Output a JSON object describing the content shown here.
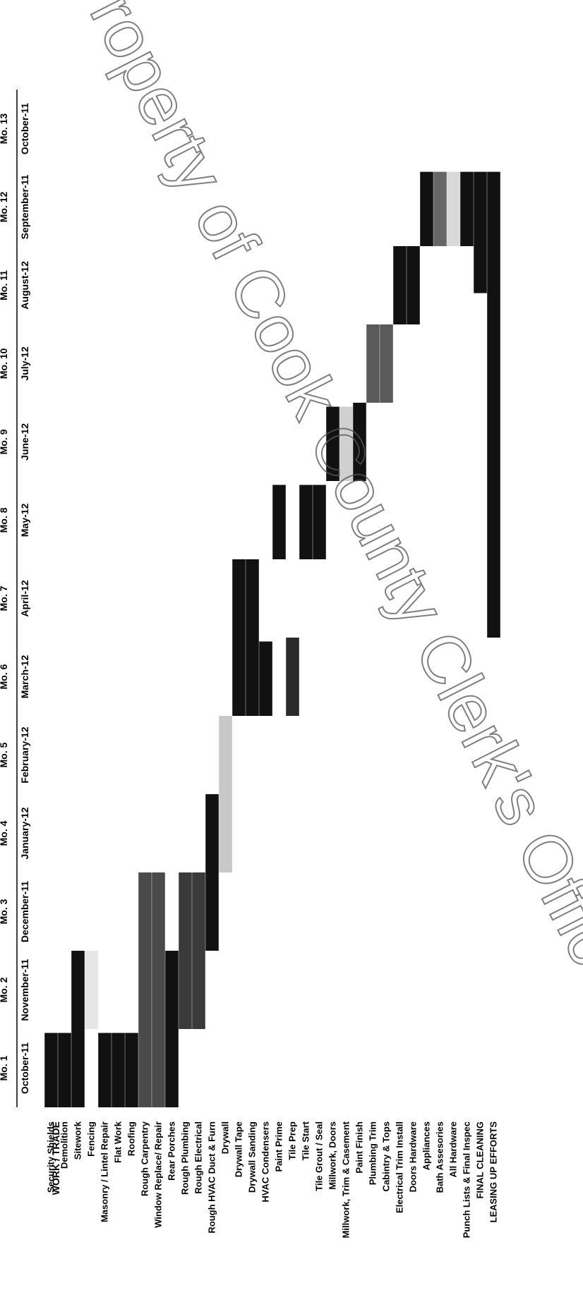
{
  "chart_data": {
    "type": "gantt",
    "header": "WORK / TRADE",
    "months": [
      {
        "label": "Mo. 1",
        "date": "October-11"
      },
      {
        "label": "Mo. 2",
        "date": "November-11"
      },
      {
        "label": "Mo. 3",
        "date": "December-11"
      },
      {
        "label": "Mo. 4",
        "date": "January-12"
      },
      {
        "label": "Mo. 5",
        "date": "February-12"
      },
      {
        "label": "Mo. 6",
        "date": "March-12"
      },
      {
        "label": "Mo. 7",
        "date": "April-12"
      },
      {
        "label": "Mo. 8",
        "date": "May-12"
      },
      {
        "label": "Mo. 9",
        "date": "June-12"
      },
      {
        "label": "Mo. 10",
        "date": "July-12"
      },
      {
        "label": "Mo. 11",
        "date": "August-12"
      },
      {
        "label": "Mo. 12",
        "date": "September-11"
      },
      {
        "label": "Mo. 13",
        "date": "October-11"
      }
    ],
    "tasks": [
      {
        "name": "Security Shields",
        "start": 0.0,
        "end": 0.95,
        "shade": "#111111"
      },
      {
        "name": "Demolition",
        "start": 0.0,
        "end": 0.95,
        "shade": "#111111"
      },
      {
        "name": "Sitework",
        "start": 0.0,
        "end": 2.0,
        "shade": "#111111"
      },
      {
        "name": "Fencing",
        "start": 1.0,
        "end": 2.0,
        "shade": "#e6e6e6"
      },
      {
        "name": "Masonry / Lintel Repair",
        "start": 0.0,
        "end": 0.95,
        "shade": "#111111"
      },
      {
        "name": "Flat Work",
        "start": 0.0,
        "end": 0.95,
        "shade": "#111111"
      },
      {
        "name": "Roofing",
        "start": 0.0,
        "end": 0.95,
        "shade": "#111111"
      },
      {
        "name": "Rough Carpentry",
        "start": 0.0,
        "end": 3.0,
        "shade": "#4a4a4a"
      },
      {
        "name": "Window Replace/ Repair",
        "start": 0.0,
        "end": 3.0,
        "shade": "#4a4a4a"
      },
      {
        "name": "Rear Porches",
        "start": 0.0,
        "end": 2.0,
        "shade": "#111111"
      },
      {
        "name": "Rough Plumbing",
        "start": 1.0,
        "end": 3.0,
        "shade": "#3a3a3a"
      },
      {
        "name": "Rough Electrical",
        "start": 1.0,
        "end": 3.0,
        "shade": "#3a3a3a"
      },
      {
        "name": "Rough HVAC Duct & Furn",
        "start": 2.0,
        "end": 4.0,
        "shade": "#111111"
      },
      {
        "name": "Drywall",
        "start": 3.0,
        "end": 5.0,
        "shade": "#c8c8c8"
      },
      {
        "name": "Drywall Tape",
        "start": 5.0,
        "end": 7.0,
        "shade": "#111111"
      },
      {
        "name": "Drywall Sanding",
        "start": 5.0,
        "end": 7.0,
        "shade": "#111111"
      },
      {
        "name": "HVAC Condensers",
        "start": 5.0,
        "end": 5.95,
        "shade": "#111111"
      },
      {
        "name": "Paint Prime",
        "start": 7.0,
        "end": 7.95,
        "shade": "#111111"
      },
      {
        "name": "Tile Prep",
        "start": 5.0,
        "end": 6.0,
        "shade": "#2a2a2a"
      },
      {
        "name": "Tile Start",
        "start": 7.0,
        "end": 7.95,
        "shade": "#111111"
      },
      {
        "name": "Tile Grout / Seal",
        "start": 7.0,
        "end": 7.95,
        "shade": "#111111"
      },
      {
        "name": "Millwork, Doors",
        "start": 8.0,
        "end": 8.95,
        "shade": "#111111"
      },
      {
        "name": "Millwork, Trim & Casement",
        "start": 8.0,
        "end": 8.95,
        "shade": "#d0d0d0"
      },
      {
        "name": "Paint Finish",
        "start": 8.0,
        "end": 9.0,
        "shade": "#111111"
      },
      {
        "name": "Plumbing Trim",
        "start": 9.0,
        "end": 10.0,
        "shade": "#5a5a5a"
      },
      {
        "name": "Cabintry & Tops",
        "start": 9.0,
        "end": 10.0,
        "shade": "#5a5a5a"
      },
      {
        "name": "Electrical Trim Install",
        "start": 10.0,
        "end": 11.0,
        "shade": "#111111"
      },
      {
        "name": "Doors Hardware",
        "start": 10.0,
        "end": 11.0,
        "shade": "#111111"
      },
      {
        "name": "Appliances",
        "start": 11.0,
        "end": 11.95,
        "shade": "#111111"
      },
      {
        "name": "Bath Assesories",
        "start": 11.0,
        "end": 11.95,
        "shade": "#666666"
      },
      {
        "name": "All Hardware",
        "start": 11.0,
        "end": 11.95,
        "shade": "#d8d8d8"
      },
      {
        "name": "Punch Lists & Final Inspec",
        "start": 11.0,
        "end": 11.95,
        "shade": "#111111"
      },
      {
        "name": "FINAL CLEANING",
        "start": 10.4,
        "end": 11.95,
        "shade": "#111111"
      },
      {
        "name": "LEASING UP EFFORTS",
        "start": 6.0,
        "end": 11.95,
        "shade": "#111111"
      }
    ]
  },
  "watermark": "Property of Cook County Clerk's Office"
}
